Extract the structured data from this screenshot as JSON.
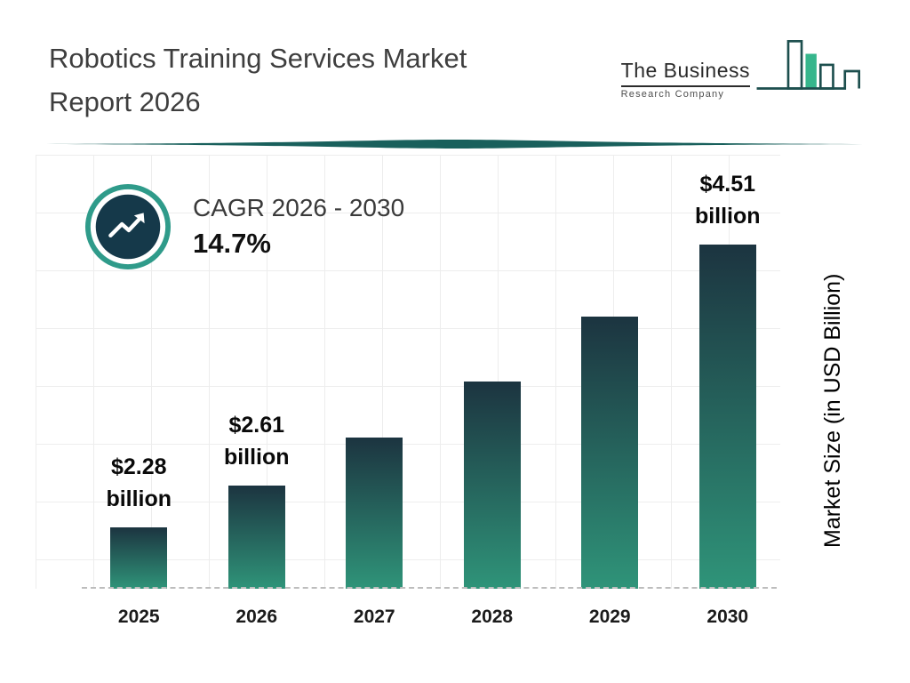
{
  "header": {
    "title_line1": "Robotics Training Services Market",
    "title_line2": "Report 2026"
  },
  "logo": {
    "line1": "The Business",
    "line2": "Research Company"
  },
  "cagr": {
    "label": "CAGR 2026 - 2030",
    "value": "14.7%"
  },
  "chart_data": {
    "type": "bar",
    "title": "Robotics Training Services Market Report 2026",
    "categories": [
      "2025",
      "2026",
      "2027",
      "2028",
      "2029",
      "2030"
    ],
    "values": [
      2.28,
      2.61,
      2.99,
      3.43,
      3.94,
      4.51
    ],
    "labels": [
      "$2.28 billion",
      "$2.61 billion",
      null,
      null,
      null,
      "$4.51 billion"
    ],
    "ylabel": "Market Size (in USD Billion)",
    "ylim": [
      1.8,
      4.6
    ],
    "grid": true,
    "legend": "none",
    "bar_color_top": "#1c3440",
    "bar_color_bottom": "#2f9479"
  },
  "colors": {
    "accent_teal": "#1d5e5a",
    "logo_green": "#36b68c",
    "icon_ring": "#2f9b8a",
    "icon_disc": "#15394a",
    "grid_line": "#ededed",
    "dashed_line": "#bdbdbd",
    "title_text": "#3e3e3e"
  }
}
